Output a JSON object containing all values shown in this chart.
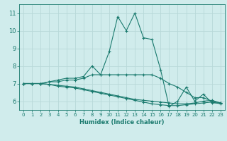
{
  "xlabel": "Humidex (Indice chaleur)",
  "bg_color": "#d0ecec",
  "grid_color": "#b8d8d8",
  "line_color": "#1a7a6e",
  "xlim": [
    -0.5,
    23.5
  ],
  "ylim": [
    5.5,
    11.5
  ],
  "xticks": [
    0,
    1,
    2,
    3,
    4,
    5,
    6,
    7,
    8,
    9,
    10,
    11,
    12,
    13,
    14,
    15,
    16,
    17,
    18,
    19,
    20,
    21,
    22,
    23
  ],
  "yticks": [
    6,
    7,
    8,
    9,
    10,
    11
  ],
  "series": {
    "line1": [
      7.0,
      7.0,
      7.0,
      7.1,
      7.2,
      7.3,
      7.3,
      7.4,
      8.0,
      7.5,
      8.8,
      10.8,
      10.0,
      11.0,
      9.6,
      9.5,
      7.8,
      5.7,
      6.0,
      6.8,
      6.0,
      6.4,
      5.9,
      5.9
    ],
    "line2": [
      7.0,
      7.0,
      7.0,
      7.1,
      7.1,
      7.2,
      7.2,
      7.3,
      7.5,
      7.5,
      7.5,
      7.5,
      7.5,
      7.5,
      7.5,
      7.5,
      7.3,
      7.0,
      6.8,
      6.5,
      6.2,
      6.2,
      6.0,
      5.9
    ],
    "line3": [
      7.0,
      7.0,
      7.0,
      6.95,
      6.9,
      6.85,
      6.8,
      6.7,
      6.6,
      6.5,
      6.4,
      6.3,
      6.2,
      6.1,
      6.05,
      6.0,
      5.95,
      5.9,
      5.85,
      5.85,
      5.9,
      6.0,
      6.05,
      5.9
    ],
    "line4": [
      7.0,
      7.0,
      7.0,
      6.95,
      6.85,
      6.8,
      6.75,
      6.65,
      6.55,
      6.45,
      6.35,
      6.25,
      6.15,
      6.05,
      5.95,
      5.85,
      5.8,
      5.75,
      5.75,
      5.8,
      5.85,
      5.9,
      5.95,
      5.85
    ]
  }
}
